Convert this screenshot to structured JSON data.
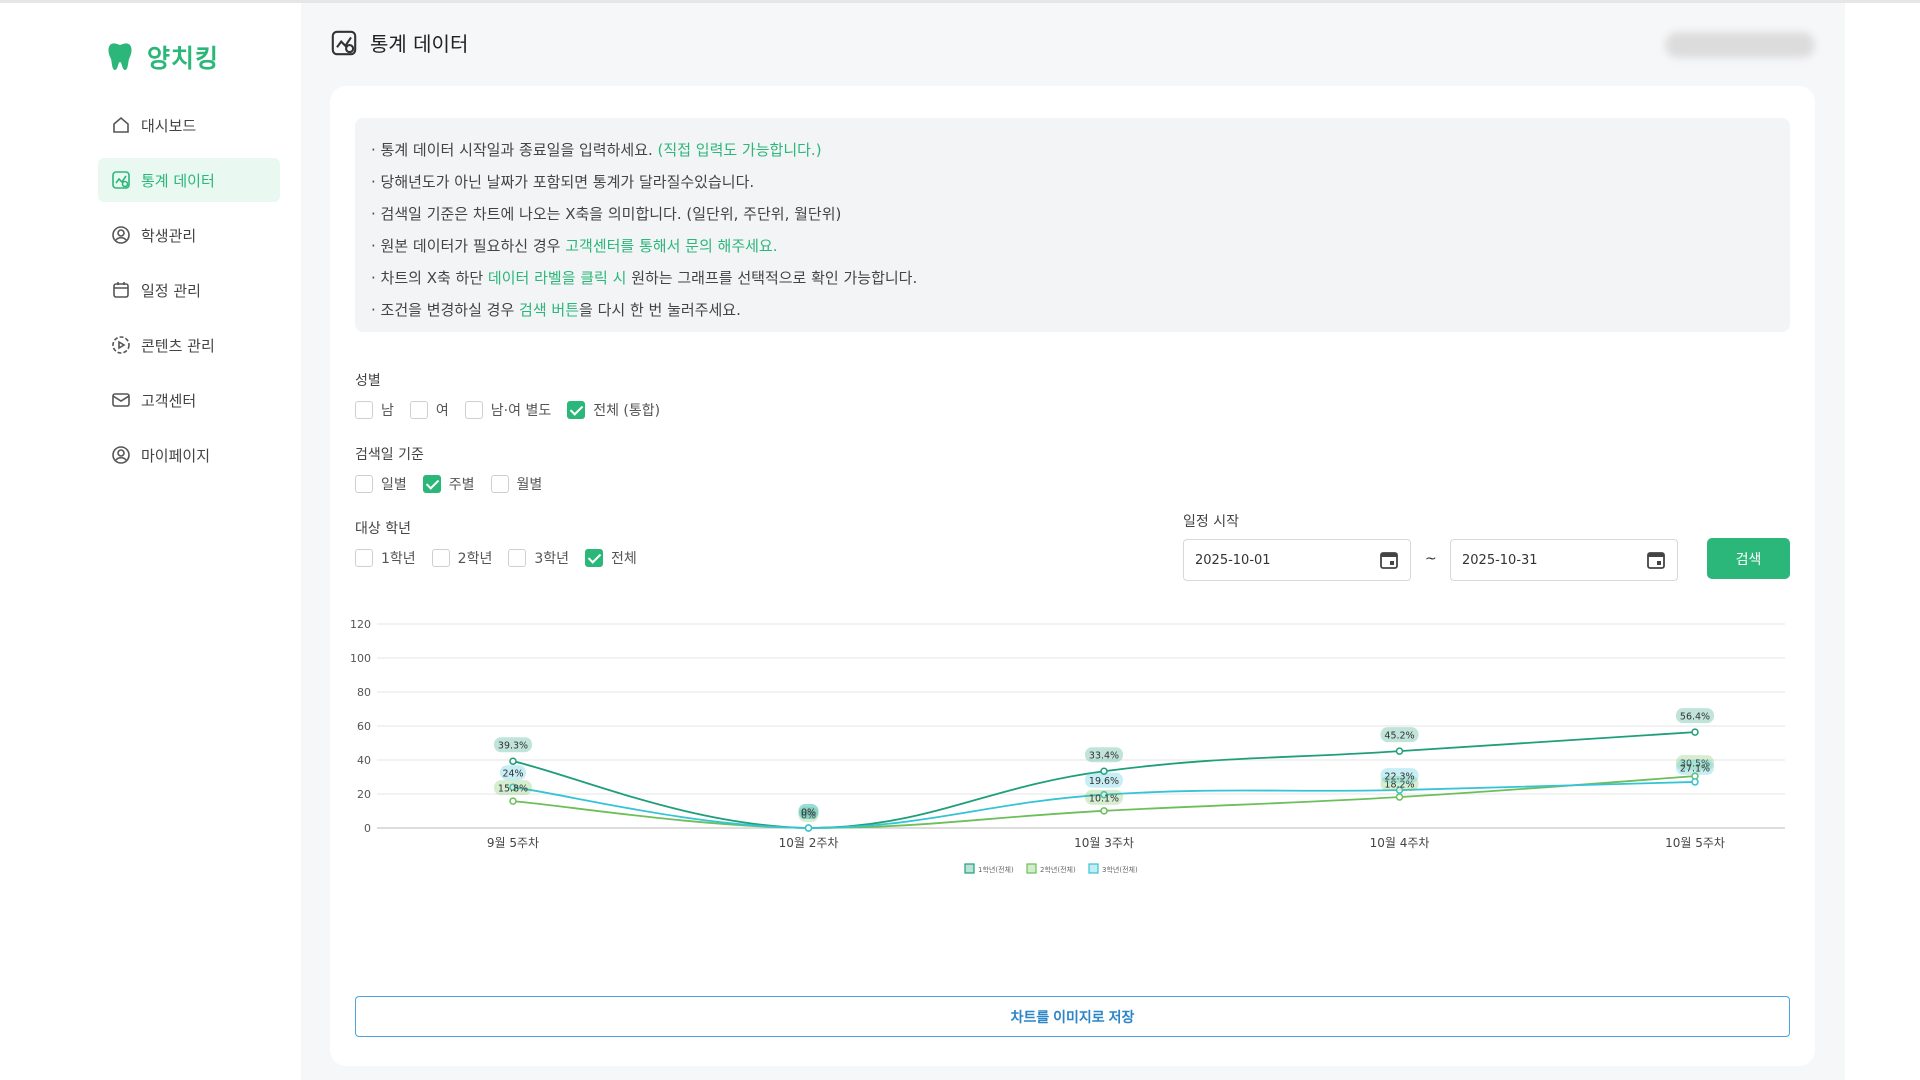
{
  "app": {
    "name": "양치킹",
    "brand_color": "#2bb77a"
  },
  "sidebar": {
    "items": [
      {
        "label": "대시보드",
        "icon": "home-icon",
        "active": false
      },
      {
        "label": "통계 데이터",
        "icon": "chart-icon",
        "active": true
      },
      {
        "label": "학생관리",
        "icon": "user-icon",
        "active": false
      },
      {
        "label": "일정 관리",
        "icon": "calendar-icon",
        "active": false
      },
      {
        "label": "콘텐츠 관리",
        "icon": "content-icon",
        "active": false
      },
      {
        "label": "고객센터",
        "icon": "mail-icon",
        "active": false
      },
      {
        "label": "마이페이지",
        "icon": "profile-icon",
        "active": false
      }
    ]
  },
  "header": {
    "title": "통계 데이터"
  },
  "info": {
    "line1_a": "· 통계 데이터 시작일과 종료일을 입력하세요. ",
    "line1_b": "(직접 입력도 가능합니다.)",
    "line2": "· 당해년도가 아닌 날짜가 포함되면 통계가 달라질수있습니다.",
    "line3": "· 검색일 기준은 차트에 나오는 X축을 의미합니다. (일단위, 주단위, 월단위)",
    "line4_a": "· 원본 데이터가 필요하신 경우 ",
    "line4_b": "고객센터를 통해서 문의 해주세요.",
    "line5_a": "· 차트의 X축 하단 ",
    "line5_b": "데이터 라벨을 클릭 시",
    "line5_c": " 원하는 그래프를 선택적으로 확인 가능합니다.",
    "line6_a": "· 조건을 변경하실 경우 ",
    "line6_b": "검색 버튼",
    "line6_c": "을 다시 한 번 눌러주세요."
  },
  "filters": {
    "gender": {
      "label": "성별",
      "options": [
        {
          "label": "남",
          "checked": false
        },
        {
          "label": "여",
          "checked": false
        },
        {
          "label": "남·여 별도",
          "checked": false
        },
        {
          "label": "전체 (통합)",
          "checked": true
        }
      ]
    },
    "period": {
      "label": "검색일 기준",
      "options": [
        {
          "label": "일별",
          "checked": false
        },
        {
          "label": "주별",
          "checked": true
        },
        {
          "label": "월별",
          "checked": false
        }
      ]
    },
    "grade": {
      "label": "대상 학년",
      "options": [
        {
          "label": "1학년",
          "checked": false
        },
        {
          "label": "2학년",
          "checked": false
        },
        {
          "label": "3학년",
          "checked": false
        },
        {
          "label": "전체",
          "checked": true
        }
      ]
    },
    "schedule": {
      "label": "일정 시작",
      "start": "2025-10-01",
      "tilde": "~",
      "end": "2025-10-31"
    },
    "search_label": "검색"
  },
  "chart_data": {
    "type": "line",
    "categories": [
      "9월 5주차",
      "10월 2주차",
      "10월 3주차",
      "10월 4주차",
      "10월 5주차"
    ],
    "ylim": [
      0,
      120
    ],
    "yticks": [
      "0",
      "20",
      "40",
      "60",
      "80",
      "100",
      "120"
    ],
    "legend_position": "bottom",
    "grid": true,
    "series": [
      {
        "name": "1학년(전체)",
        "color": "#1f9e7a",
        "values": [
          39.3,
          0,
          33.4,
          45.2,
          56.4
        ],
        "labels": [
          "39.3%",
          "0%",
          "33.4%",
          "45.2%",
          "56.4%"
        ]
      },
      {
        "name": "2학년(전체)",
        "color": "#6cbf5a",
        "values": [
          15.8,
          0,
          10.1,
          18.2,
          30.5
        ],
        "labels": [
          "15.8%",
          "0%",
          "10.1%",
          "18.2%",
          "30.5%"
        ]
      },
      {
        "name": "3학년(전체)",
        "color": "#35c3d6",
        "values": [
          24,
          0,
          19.6,
          22.3,
          27.1
        ],
        "labels": [
          "24%",
          "0%",
          "19.6%",
          "22.3%",
          "27.1%"
        ]
      }
    ]
  },
  "save_label": "차트를 이미지로 저장"
}
